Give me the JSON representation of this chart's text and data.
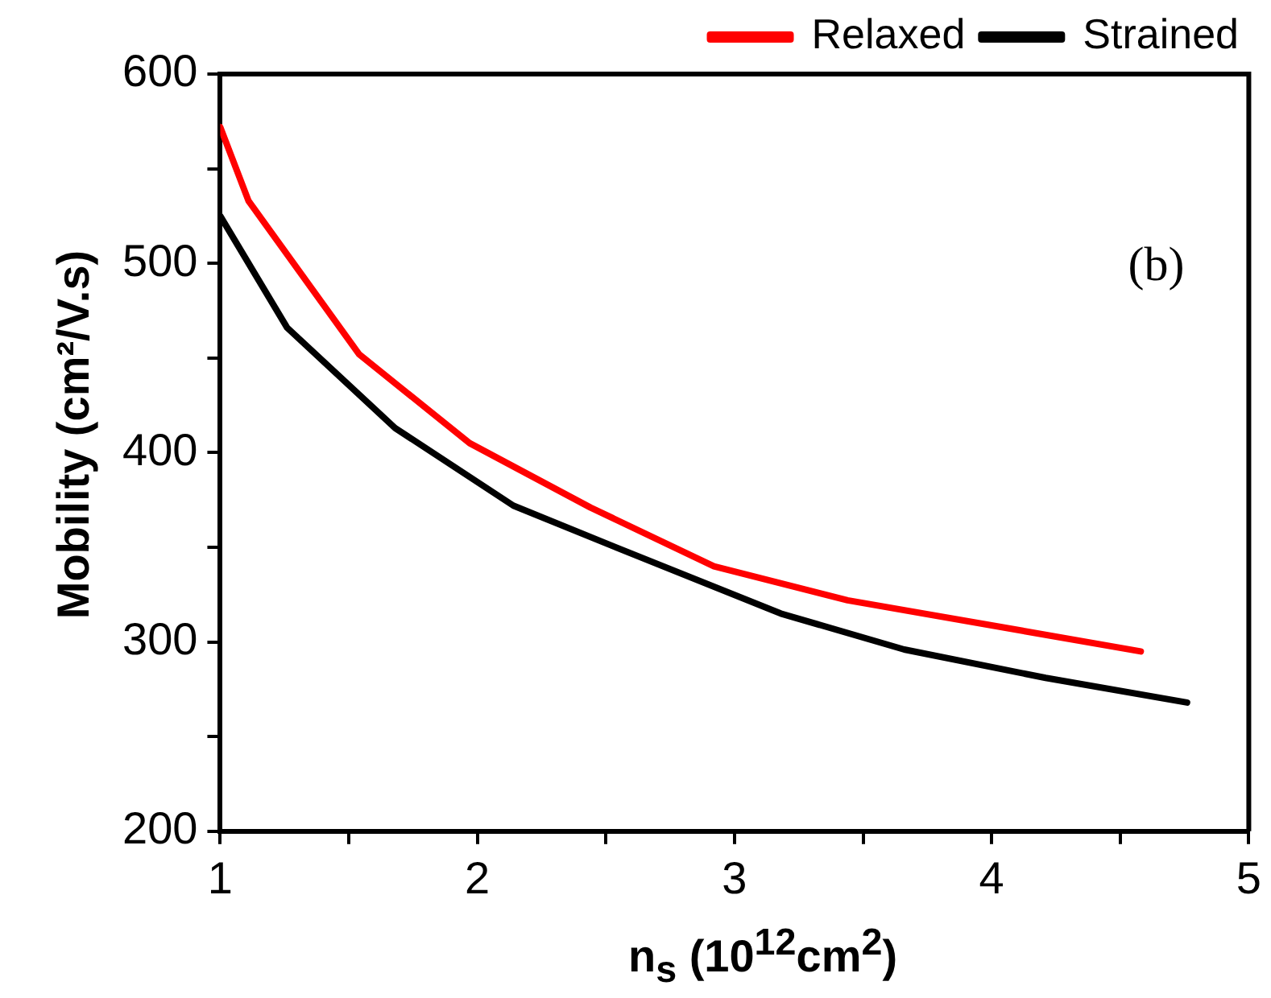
{
  "chart_data": {
    "type": "line",
    "xlabel": "n$_{s}$ (10$^{12}$cm$^{2}$)",
    "ylabel": "Mobility (cm²/V.s)",
    "annotations": [
      "(b)"
    ],
    "xlim": [
      1,
      5
    ],
    "ylim": [
      200,
      600
    ],
    "xticks": [
      1,
      {
        "value": 1.5,
        "label": null
      },
      2,
      {
        "value": 2.5,
        "label": null
      },
      3,
      {
        "value": 3.5,
        "label": null
      },
      4,
      {
        "value": 4.5,
        "label": null
      },
      5
    ],
    "yticks": [
      200,
      {
        "value": 250,
        "label": null
      },
      300,
      {
        "value": 350,
        "label": null
      },
      400,
      {
        "value": 450,
        "label": null
      },
      500,
      {
        "value": 550,
        "label": null
      },
      600
    ],
    "grid": false,
    "legend": "top right",
    "marker": "none",
    "line_style": "solid",
    "series": [
      {
        "name": "Relaxed",
        "color": "#ff0000",
        "x": [
          1.0,
          1.11,
          1.54,
          1.97,
          2.44,
          2.92,
          3.44,
          4.58
        ],
        "values": [
          572,
          533,
          452,
          405,
          371,
          340,
          322,
          295
        ]
      },
      {
        "name": "Strained",
        "color": "#000000",
        "x": [
          1.0,
          1.26,
          1.68,
          2.14,
          2.52,
          3.18,
          3.66,
          4.21,
          4.76
        ],
        "values": [
          525,
          466,
          413,
          372,
          351,
          315,
          296,
          281,
          268
        ]
      }
    ]
  }
}
